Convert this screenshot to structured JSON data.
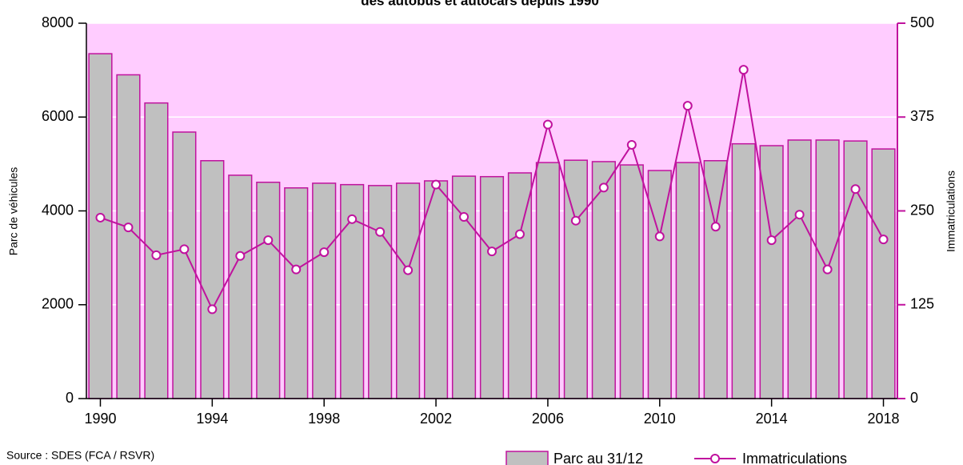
{
  "chart_data": {
    "type": "bar_line",
    "title": "des autobus et autocars depuis 1990",
    "source": "Source : SDES (FCA / RSVR)",
    "ylabel": "Parc de véhicules",
    "y2label": "Immatriculations",
    "categories": [
      "1990",
      null,
      null,
      null,
      "1994",
      null,
      null,
      null,
      "1998",
      null,
      null,
      null,
      "2002",
      null,
      null,
      null,
      "2006",
      null,
      null,
      null,
      "2010",
      null,
      null,
      null,
      "2014",
      null,
      null,
      null,
      "2018"
    ],
    "series": [
      {
        "name": "Parc au 31/12",
        "type": "bar",
        "color": "#c0c0c0",
        "edge": "#c0129e",
        "values": [
          7350,
          6900,
          6300,
          5680,
          5070,
          4760,
          4610,
          4490,
          4590,
          4560,
          4540,
          4590,
          4640,
          4740,
          4730,
          4810,
          5030,
          5080,
          5050,
          4980,
          4860,
          5030,
          5070,
          5430,
          5390,
          5510,
          5510,
          5490,
          5320
        ]
      },
      {
        "name": "Immatriculations",
        "type": "line",
        "axis": "y2",
        "color": "#c0129e",
        "values": [
          241,
          228,
          191,
          199,
          119,
          190,
          211,
          172,
          195,
          239,
          222,
          171,
          285,
          242,
          196,
          219,
          365,
          237,
          281,
          338,
          216,
          390,
          229,
          438,
          211,
          245,
          172,
          279,
          212
        ]
      }
    ],
    "ylim": [
      0,
      8000
    ],
    "yticks": [
      0,
      2000,
      4000,
      6000,
      8000
    ],
    "y2lim": [
      0,
      500
    ],
    "y2ticks": [
      0,
      125,
      250,
      375,
      500
    ],
    "background": "#ffccff",
    "grid": true
  }
}
